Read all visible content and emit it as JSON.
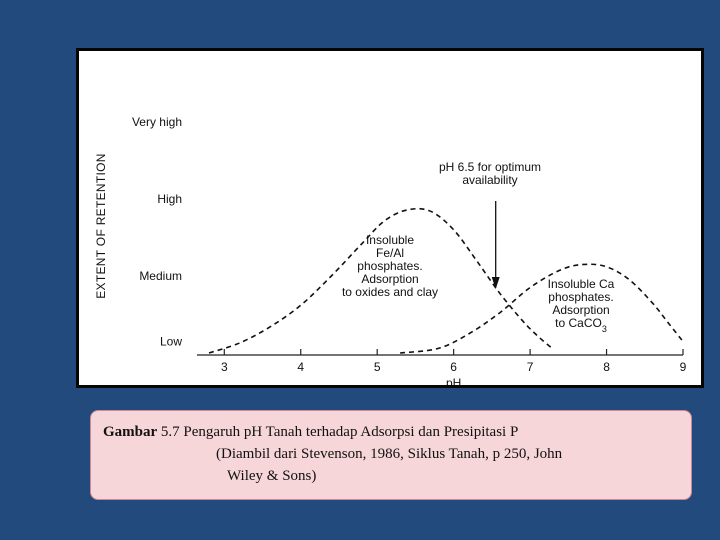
{
  "chart_data": {
    "type": "line",
    "xlabel": "pH",
    "ylabel": "EXTENT OF RETENTION",
    "x_ticks": [
      3,
      4,
      5,
      6,
      7,
      8,
      9
    ],
    "xlim": [
      2.8,
      9.0
    ],
    "y_levels": [
      "Low",
      "Medium",
      "High",
      "Very high"
    ],
    "ylim": [
      0,
      3
    ],
    "grid": false,
    "series": [
      {
        "x": [
          2.8,
          3.2,
          3.6,
          4.0,
          4.4,
          4.8,
          5.1,
          5.4,
          5.7,
          6.0,
          6.3,
          6.6,
          6.9,
          7.1,
          7.3
        ],
        "y": [
          0.0,
          0.13,
          0.34,
          0.62,
          1.0,
          1.42,
          1.72,
          1.86,
          1.84,
          1.6,
          1.2,
          0.78,
          0.42,
          0.22,
          0.05
        ],
        "annotation": [
          "Insoluble",
          "Fe/Al",
          "phosphates.",
          "Adsorption",
          "to oxides and clay"
        ]
      },
      {
        "x": [
          5.3,
          5.8,
          6.2,
          6.6,
          7.0,
          7.4,
          7.7,
          8.0,
          8.3,
          8.6,
          8.8,
          9.0
        ],
        "y": [
          0.0,
          0.06,
          0.25,
          0.52,
          0.85,
          1.08,
          1.15,
          1.12,
          0.95,
          0.65,
          0.4,
          0.15
        ],
        "annotation": [
          "Insoluble Ca",
          "phosphates.",
          "Adsorption",
          "to CaCO3"
        ]
      }
    ],
    "pointer": {
      "text": [
        "pH 6.5 for optimum",
        "availability"
      ],
      "x": 6.55
    }
  },
  "caption": {
    "lead": "Gambar",
    "line1": "5.7 Pengaruh pH Tanah terhadap Adsorpsi dan Presipitasi P",
    "line2": "(Diambil dari Stevenson, 1986, Siklus Tanah, p 250, John",
    "line3": "Wiley & Sons)"
  }
}
